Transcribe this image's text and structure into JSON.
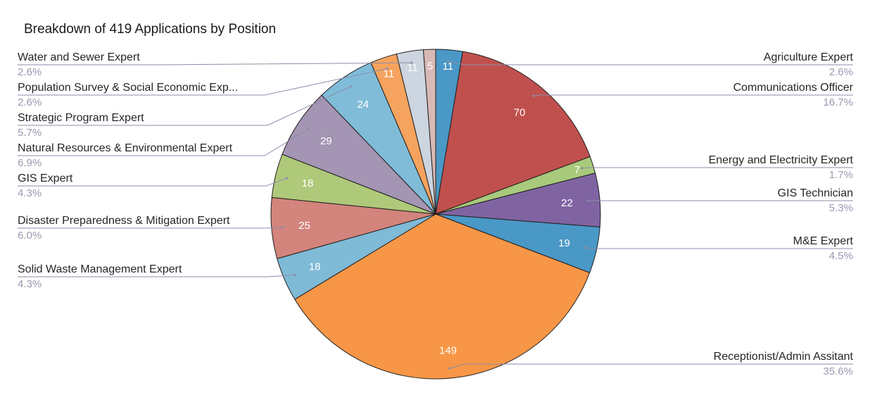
{
  "chart_data": {
    "type": "pie",
    "title": "Breakdown of 419 Applications by Position",
    "slices": [
      {
        "label": "Agriculture Expert",
        "value": 11,
        "percent": "2.6%",
        "color": "#4a98c6"
      },
      {
        "label": "Communications Officer",
        "value": 70,
        "percent": "16.7%",
        "color": "#c0504d"
      },
      {
        "label": "Energy and Electricity Expert",
        "value": 7,
        "percent": "1.7%",
        "color": "#a9c97c"
      },
      {
        "label": "GIS Technician",
        "value": 22,
        "percent": "5.3%",
        "color": "#8064a2"
      },
      {
        "label": "M&E Expert",
        "value": 19,
        "percent": "4.5%",
        "color": "#4a98c6"
      },
      {
        "label": "Receptionist/Admin Assitant",
        "value": 149,
        "percent": "35.6%",
        "color": "#f79646"
      },
      {
        "label": "Solid Waste Management Expert",
        "value": 18,
        "percent": "4.3%",
        "color": "#7fbad6"
      },
      {
        "label": "Disaster Preparedness & Mitigation Expert",
        "value": 25,
        "percent": "6.0%",
        "color": "#d3847c"
      },
      {
        "label": "GIS Expert",
        "value": 18,
        "percent": "4.3%",
        "color": "#afc97a"
      },
      {
        "label": "Natural Resources & Environmental Expert",
        "value": 29,
        "percent": "6.9%",
        "color": "#a395b3"
      },
      {
        "label": "Strategic Program Expert",
        "value": 24,
        "percent": "5.7%",
        "color": "#80bcd8"
      },
      {
        "label": "Population Survey & Social Economic Exp...",
        "value": 11,
        "percent": "2.6%",
        "color": "#f5a35e"
      },
      {
        "label": "Water and Sewer Expert",
        "value": 11,
        "percent": "2.6%",
        "color": "#ccd5e0"
      },
      {
        "label": "",
        "value": 5,
        "percent": "",
        "color": "#d8b9b6"
      }
    ],
    "legend": "none"
  }
}
